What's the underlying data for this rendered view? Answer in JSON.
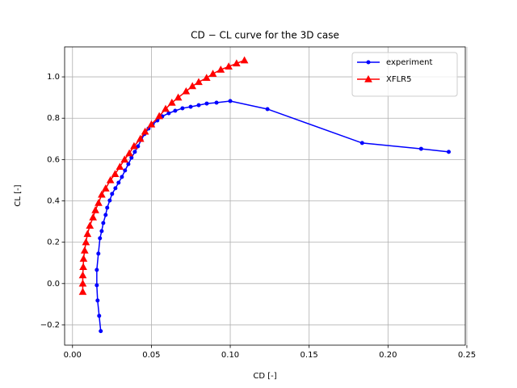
{
  "chart_data": {
    "type": "line",
    "title": "CD − CL curve for the 3D case",
    "xlabel": "CD [-]",
    "ylabel": "CL [-]",
    "xlim": [
      -0.005,
      0.249
    ],
    "ylim": [
      -0.298,
      1.145
    ],
    "xticks": [
      {
        "value": 0,
        "label": "0.00"
      },
      {
        "value": 0.05,
        "label": "0.05"
      },
      {
        "value": 0.1,
        "label": "0.10"
      },
      {
        "value": 0.15,
        "label": "0.15"
      },
      {
        "value": 0.2,
        "label": "0.20"
      },
      {
        "value": 0.25,
        "label": "0.25"
      }
    ],
    "yticks": [
      {
        "value": -0.2,
        "label": "−0.2"
      },
      {
        "value": 0,
        "label": "0.0"
      },
      0.2,
      0.4,
      0.6,
      0.8,
      {
        "value": 1,
        "label": "1.0"
      }
    ],
    "grid": true,
    "legend": "upper right",
    "series": [
      {
        "name": "experiment",
        "color": "#0000ff",
        "marker": "circle",
        "x": [
          0.0179,
          0.0169,
          0.0159,
          0.0154,
          0.0154,
          0.0164,
          0.0174,
          0.0185,
          0.0195,
          0.021,
          0.022,
          0.0236,
          0.0251,
          0.0272,
          0.0292,
          0.0313,
          0.0333,
          0.0354,
          0.0374,
          0.0395,
          0.0415,
          0.0436,
          0.0456,
          0.0482,
          0.0508,
          0.0538,
          0.0569,
          0.061,
          0.0651,
          0.0697,
          0.0749,
          0.08,
          0.0851,
          0.0913,
          0.1,
          0.1236,
          0.1836,
          0.221,
          0.2385
        ],
        "values": [
          -0.23,
          -0.156,
          -0.082,
          -0.008,
          0.066,
          0.145,
          0.219,
          0.254,
          0.293,
          0.332,
          0.367,
          0.402,
          0.434,
          0.461,
          0.488,
          0.516,
          0.547,
          0.578,
          0.609,
          0.637,
          0.664,
          0.695,
          0.723,
          0.75,
          0.77,
          0.789,
          0.809,
          0.824,
          0.836,
          0.848,
          0.855,
          0.863,
          0.871,
          0.875,
          0.883,
          0.844,
          0.68,
          0.652,
          0.637
        ]
      },
      {
        "name": "XFLR5",
        "color": "#ff0000",
        "marker": "triangle",
        "x": [
          0.0065,
          0.0065,
          0.0065,
          0.0068,
          0.007,
          0.0077,
          0.0085,
          0.0095,
          0.011,
          0.013,
          0.0145,
          0.0165,
          0.0185,
          0.021,
          0.024,
          0.027,
          0.03,
          0.033,
          0.036,
          0.039,
          0.043,
          0.046,
          0.05,
          0.055,
          0.059,
          0.063,
          0.067,
          0.072,
          0.076,
          0.08,
          0.085,
          0.089,
          0.094,
          0.099,
          0.104,
          0.109
        ],
        "values": [
          -0.04,
          0,
          0.04,
          0.08,
          0.12,
          0.16,
          0.2,
          0.24,
          0.28,
          0.32,
          0.355,
          0.39,
          0.43,
          0.46,
          0.5,
          0.53,
          0.565,
          0.6,
          0.63,
          0.665,
          0.7,
          0.735,
          0.77,
          0.81,
          0.845,
          0.875,
          0.9,
          0.93,
          0.955,
          0.975,
          0.995,
          1.015,
          1.035,
          1.05,
          1.065,
          1.08
        ]
      }
    ]
  }
}
